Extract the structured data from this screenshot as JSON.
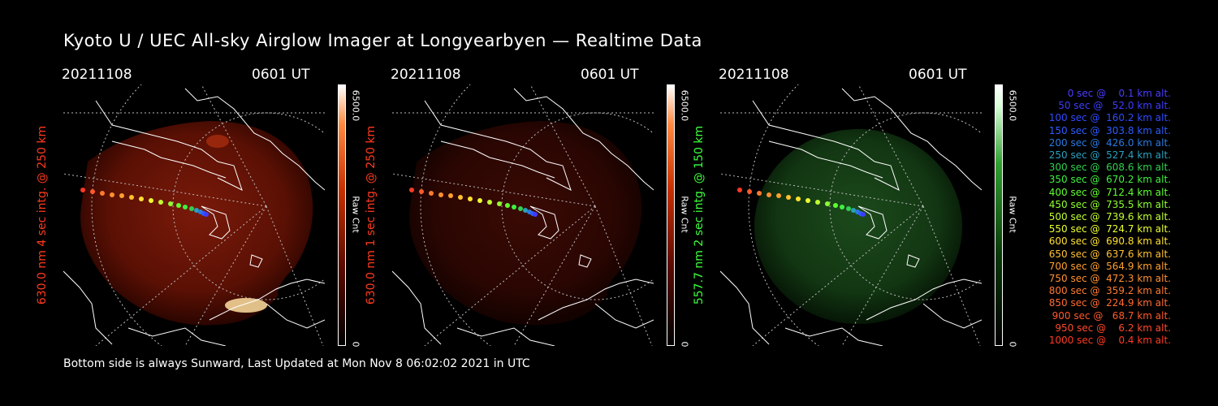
{
  "title": "Kyoto U / UEC All-sky Airglow Imager at Longyearbyen — Realtime Data",
  "footer": "Bottom side is always Sunward, Last Updated at Mon Nov  8 06:02:02 2021 in UTC",
  "panels": [
    {
      "date": "20211108",
      "time": "0601 UT",
      "label": "630.0 nm 4 sec intg. @ 250 km",
      "label_color": "#ff3a1e",
      "scale_max": "6500.0",
      "scale_unit": "Raw Cnt",
      "scale_min": "0",
      "colormap": "red",
      "brightness": "bright"
    },
    {
      "date": "20211108",
      "time": "0601 UT",
      "label": "630.0 nm 1 sec intg. @ 250 km",
      "label_color": "#ff3a1e",
      "scale_max": "6500.0",
      "scale_unit": "Raw Cnt",
      "scale_min": "0",
      "colormap": "red",
      "brightness": "dim"
    },
    {
      "date": "20211108",
      "time": "0601 UT",
      "label": "557.7 nm 2 sec intg. @ 150 km",
      "label_color": "#3cff3c",
      "scale_max": "6500.0",
      "scale_unit": "Raw Cnt",
      "scale_min": "0",
      "colormap": "green",
      "brightness": "medium"
    }
  ],
  "legend": [
    {
      "text": "0 sec @    0.1 km alt.",
      "color": "#4a3cff"
    },
    {
      "text": "50 sec @   52.0 km alt.",
      "color": "#3c3cff"
    },
    {
      "text": "100 sec @  160.2 km alt.",
      "color": "#2f4bff"
    },
    {
      "text": "150 sec @  303.8 km alt.",
      "color": "#2e5cff"
    },
    {
      "text": "200 sec @  426.0 km alt.",
      "color": "#2a7ae0"
    },
    {
      "text": "250 sec @  527.4 km alt.",
      "color": "#2aa0c0"
    },
    {
      "text": "300 sec @  608.6 km alt.",
      "color": "#30d050"
    },
    {
      "text": "350 sec @  670.2 km alt.",
      "color": "#40f040"
    },
    {
      "text": "400 sec @  712.4 km alt.",
      "color": "#60ff30"
    },
    {
      "text": "450 sec @  735.5 km alt.",
      "color": "#90ff30"
    },
    {
      "text": "500 sec @  739.6 km alt.",
      "color": "#c0ff30"
    },
    {
      "text": "550 sec @  724.7 km alt.",
      "color": "#eaff30"
    },
    {
      "text": "600 sec @  690.8 km alt.",
      "color": "#ffe030"
    },
    {
      "text": "650 sec @  637.6 km alt.",
      "color": "#ffc030"
    },
    {
      "text": "700 sec @  564.9 km alt.",
      "color": "#ffa030"
    },
    {
      "text": "750 sec @  472.3 km alt.",
      "color": "#ff9030"
    },
    {
      "text": "800 sec @  359.2 km alt.",
      "color": "#ff7a30"
    },
    {
      "text": "850 sec @  224.9 km alt.",
      "color": "#ff6a30"
    },
    {
      "text": "900 sec @   68.7 km alt.",
      "color": "#ff5a2a"
    },
    {
      "text": "950 sec @    6.2 km alt.",
      "color": "#ff4a28"
    },
    {
      "text": "1000 sec @    0.4 km alt.",
      "color": "#ff3a24"
    }
  ]
}
